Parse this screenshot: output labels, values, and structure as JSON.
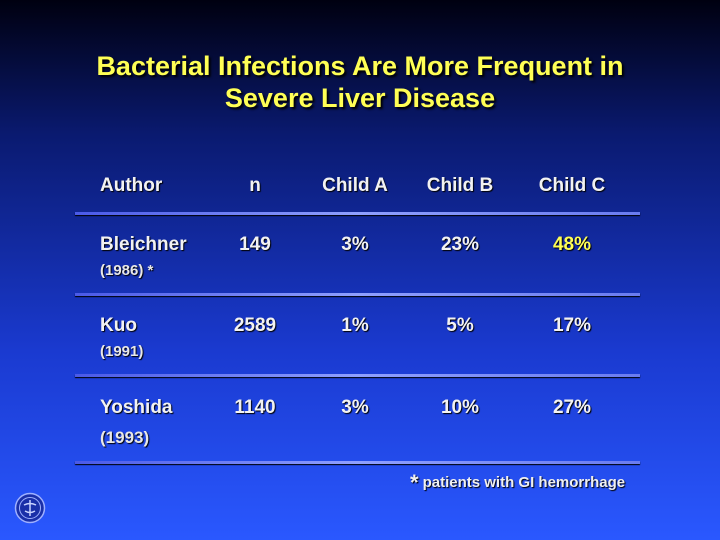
{
  "title": {
    "line1": "Bacterial Infections Are More Frequent in",
    "line2": "Severe Liver Disease"
  },
  "table": {
    "headers": [
      "Author",
      "n",
      "Child A",
      "Child B",
      "Child C"
    ],
    "rows": [
      {
        "author": "Bleichner",
        "year": "(1986) *",
        "n": "149",
        "child_a": "3%",
        "child_b": "23%",
        "child_c": "48%"
      },
      {
        "author": "Kuo",
        "year": "(1991)",
        "n": "2589",
        "child_a": "1%",
        "child_b": "5%",
        "child_c": "17%"
      },
      {
        "author": "Yoshida",
        "year": "(1993)",
        "n": "1140",
        "child_a": "3%",
        "child_b": "10%",
        "child_c": "27%"
      }
    ]
  },
  "footnote": {
    "star": "*",
    "text": "patients with GI hemorrhage"
  },
  "colors": {
    "title": "#ffff55",
    "highlight": "#ffff55",
    "rule": "#8fa0ff"
  },
  "logo": "institution-seal-icon"
}
